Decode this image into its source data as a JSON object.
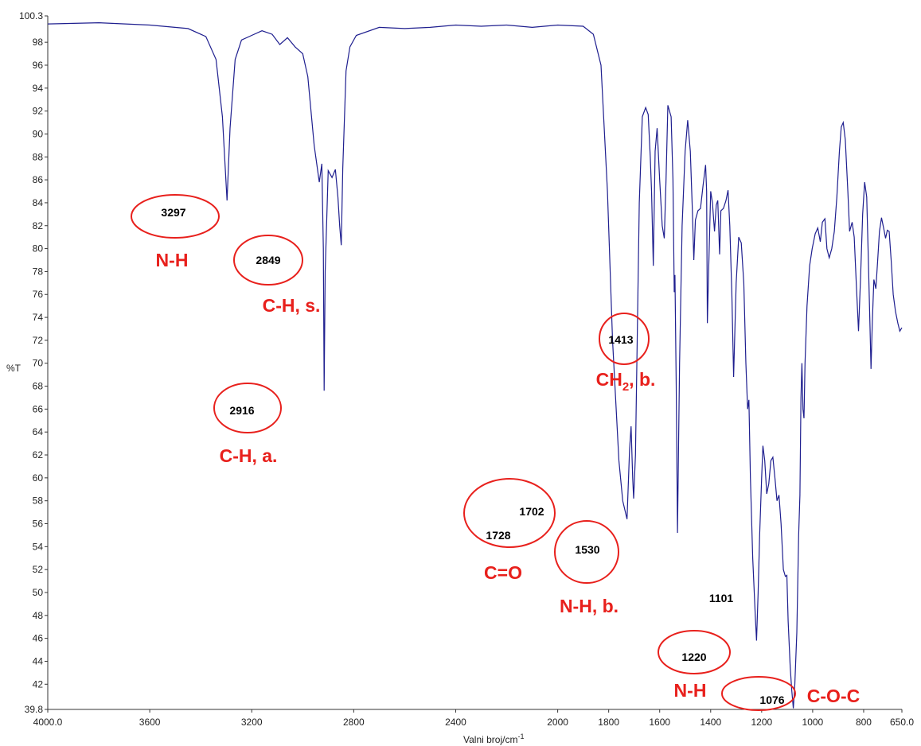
{
  "chart_data": {
    "type": "line",
    "title": "",
    "xlabel": "Valni broj/cm",
    "xlabel_sup": "-1",
    "ylabel": "%T",
    "xlim": [
      4000.0,
      650.0
    ],
    "ylim": [
      39.8,
      100.3
    ],
    "x_reversed": true,
    "grid": false,
    "x_ticks": [
      "4000.0",
      "3600",
      "3200",
      "2800",
      "2400",
      "2000",
      "1800",
      "1600",
      "1400",
      "1200",
      "1000",
      "800",
      "650.0"
    ],
    "y_ticks": [
      "39.8",
      "42",
      "44",
      "46",
      "48",
      "50",
      "52",
      "54",
      "56",
      "58",
      "60",
      "62",
      "64",
      "66",
      "68",
      "70",
      "72",
      "74",
      "76",
      "78",
      "80",
      "82",
      "84",
      "86",
      "88",
      "90",
      "92",
      "94",
      "96",
      "98",
      "100.3"
    ],
    "line_color": "#1f1f8f",
    "annotation_color": "#e8201c",
    "series": [
      {
        "points": [
          [
            4000,
            99.6
          ],
          [
            3800,
            99.7
          ],
          [
            3600,
            99.5
          ],
          [
            3450,
            99.2
          ],
          [
            3380,
            98.5
          ],
          [
            3340,
            96.5
          ],
          [
            3315,
            91.5
          ],
          [
            3297,
            84.2
          ],
          [
            3285,
            90.5
          ],
          [
            3265,
            96.5
          ],
          [
            3240,
            98.2
          ],
          [
            3200,
            98.6
          ],
          [
            3160,
            99.0
          ],
          [
            3120,
            98.7
          ],
          [
            3090,
            97.8
          ],
          [
            3060,
            98.4
          ],
          [
            3030,
            97.6
          ],
          [
            3000,
            97.0
          ],
          [
            2980,
            95.0
          ],
          [
            2955,
            89.0
          ],
          [
            2935,
            85.8
          ],
          [
            2925,
            87.4
          ],
          [
            2919,
            80.0
          ],
          [
            2916,
            67.6
          ],
          [
            2912,
            78.0
          ],
          [
            2900,
            86.8
          ],
          [
            2885,
            86.2
          ],
          [
            2872,
            86.9
          ],
          [
            2862,
            84.5
          ],
          [
            2855,
            82.0
          ],
          [
            2849,
            80.3
          ],
          [
            2843,
            87.0
          ],
          [
            2830,
            95.5
          ],
          [
            2815,
            97.6
          ],
          [
            2790,
            98.6
          ],
          [
            2700,
            99.3
          ],
          [
            2600,
            99.2
          ],
          [
            2500,
            99.3
          ],
          [
            2400,
            99.5
          ],
          [
            2300,
            99.4
          ],
          [
            2200,
            99.5
          ],
          [
            2100,
            99.3
          ],
          [
            2000,
            99.5
          ],
          [
            1900,
            99.4
          ],
          [
            1860,
            98.7
          ],
          [
            1830,
            96.0
          ],
          [
            1805,
            85.0
          ],
          [
            1785,
            72.0
          ],
          [
            1760,
            61.5
          ],
          [
            1745,
            58.0
          ],
          [
            1728,
            56.4
          ],
          [
            1718,
            62.5
          ],
          [
            1712,
            64.5
          ],
          [
            1706,
            60.0
          ],
          [
            1702,
            58.2
          ],
          [
            1695,
            62.0
          ],
          [
            1680,
            84.0
          ],
          [
            1668,
            91.5
          ],
          [
            1655,
            92.3
          ],
          [
            1645,
            91.7
          ],
          [
            1637,
            88.0
          ],
          [
            1632,
            85.0
          ],
          [
            1625,
            78.5
          ],
          [
            1618,
            88.5
          ],
          [
            1610,
            90.5
          ],
          [
            1600,
            86.0
          ],
          [
            1590,
            82.0
          ],
          [
            1582,
            80.9
          ],
          [
            1575,
            86.0
          ],
          [
            1568,
            92.5
          ],
          [
            1555,
            91.5
          ],
          [
            1548,
            86.0
          ],
          [
            1543,
            76.2
          ],
          [
            1540,
            77.7
          ],
          [
            1535,
            68.0
          ],
          [
            1530,
            55.2
          ],
          [
            1522,
            70.0
          ],
          [
            1512,
            82.0
          ],
          [
            1500,
            88.5
          ],
          [
            1490,
            91.2
          ],
          [
            1480,
            88.5
          ],
          [
            1472,
            83.5
          ],
          [
            1466,
            79.0
          ],
          [
            1460,
            82.5
          ],
          [
            1450,
            83.3
          ],
          [
            1440,
            83.5
          ],
          [
            1430,
            85.5
          ],
          [
            1420,
            87.3
          ],
          [
            1416,
            85.0
          ],
          [
            1413,
            73.5
          ],
          [
            1408,
            78.0
          ],
          [
            1400,
            85.0
          ],
          [
            1393,
            84.0
          ],
          [
            1385,
            81.5
          ],
          [
            1378,
            83.8
          ],
          [
            1372,
            84.2
          ],
          [
            1365,
            79.5
          ],
          [
            1360,
            83.3
          ],
          [
            1350,
            83.5
          ],
          [
            1340,
            84.2
          ],
          [
            1332,
            85.1
          ],
          [
            1325,
            82.0
          ],
          [
            1317,
            76.0
          ],
          [
            1310,
            68.8
          ],
          [
            1300,
            77.0
          ],
          [
            1290,
            81.0
          ],
          [
            1280,
            80.5
          ],
          [
            1270,
            77.0
          ],
          [
            1262,
            70.0
          ],
          [
            1255,
            66.0
          ],
          [
            1250,
            66.8
          ],
          [
            1244,
            60.0
          ],
          [
            1235,
            53.0
          ],
          [
            1225,
            48.0
          ],
          [
            1220,
            45.8
          ],
          [
            1214,
            50.0
          ],
          [
            1208,
            55.0
          ],
          [
            1200,
            60.0
          ],
          [
            1195,
            62.8
          ],
          [
            1188,
            61.5
          ],
          [
            1180,
            58.6
          ],
          [
            1172,
            59.5
          ],
          [
            1164,
            61.5
          ],
          [
            1156,
            61.8
          ],
          [
            1148,
            60.0
          ],
          [
            1140,
            58.0
          ],
          [
            1132,
            58.5
          ],
          [
            1124,
            56.0
          ],
          [
            1115,
            52.0
          ],
          [
            1107,
            51.4
          ],
          [
            1101,
            51.5
          ],
          [
            1096,
            47.5
          ],
          [
            1088,
            43.5
          ],
          [
            1082,
            41.5
          ],
          [
            1076,
            39.9
          ],
          [
            1070,
            42.0
          ],
          [
            1062,
            46.5
          ],
          [
            1055,
            55.0
          ],
          [
            1050,
            58.5
          ],
          [
            1046,
            67.0
          ],
          [
            1042,
            70.0
          ],
          [
            1038,
            66.0
          ],
          [
            1034,
            65.2
          ],
          [
            1030,
            70.0
          ],
          [
            1022,
            75.0
          ],
          [
            1012,
            78.5
          ],
          [
            1002,
            80.0
          ],
          [
            990,
            81.3
          ],
          [
            980,
            81.8
          ],
          [
            970,
            80.6
          ],
          [
            962,
            82.3
          ],
          [
            952,
            82.6
          ],
          [
            944,
            80.0
          ],
          [
            935,
            79.2
          ],
          [
            925,
            80.0
          ],
          [
            915,
            81.5
          ],
          [
            905,
            84.5
          ],
          [
            895,
            88.5
          ],
          [
            888,
            90.6
          ],
          [
            880,
            91.0
          ],
          [
            872,
            89.5
          ],
          [
            862,
            85.0
          ],
          [
            855,
            81.5
          ],
          [
            845,
            82.3
          ],
          [
            837,
            81.0
          ],
          [
            828,
            76.5
          ],
          [
            820,
            72.8
          ],
          [
            812,
            77.5
          ],
          [
            804,
            83.0
          ],
          [
            796,
            85.8
          ],
          [
            788,
            84.5
          ],
          [
            782,
            79.5
          ],
          [
            775,
            73.0
          ],
          [
            771,
            69.5
          ],
          [
            766,
            73.5
          ],
          [
            760,
            77.3
          ],
          [
            752,
            76.5
          ],
          [
            745,
            79.0
          ],
          [
            738,
            81.5
          ],
          [
            730,
            82.7
          ],
          [
            720,
            81.6
          ],
          [
            714,
            80.9
          ],
          [
            707,
            81.6
          ],
          [
            700,
            81.5
          ],
          [
            692,
            79.0
          ],
          [
            684,
            76.0
          ],
          [
            675,
            74.5
          ],
          [
            666,
            73.5
          ],
          [
            658,
            72.8
          ],
          [
            650,
            73.1
          ]
        ]
      }
    ],
    "peak_labels": [
      {
        "text": "3297",
        "x": 3297,
        "y": 84.2
      },
      {
        "text": "2849",
        "x": 2849,
        "y": 80.3
      },
      {
        "text": "2916",
        "x": 2916,
        "y": 67.6
      },
      {
        "text": "1728",
        "x": 1728,
        "y": 56.4
      },
      {
        "text": "1702",
        "x": 1702,
        "y": 58.2
      },
      {
        "text": "1530",
        "x": 1530,
        "y": 55.2
      },
      {
        "text": "1413",
        "x": 1413,
        "y": 73.5
      },
      {
        "text": "1220",
        "x": 1220,
        "y": 45.8
      },
      {
        "text": "1101",
        "x": 1101,
        "y": 51.5
      },
      {
        "text": "1076",
        "x": 1076,
        "y": 39.9
      }
    ],
    "assignments": [
      {
        "text": "N-H",
        "peak": "3297"
      },
      {
        "text": "C-H, s.",
        "peak": "2849"
      },
      {
        "text": "C-H, a.",
        "peak": "2916"
      },
      {
        "text": "C=O",
        "peak": "1728"
      },
      {
        "text": "N-H, b.",
        "peak": "1530"
      },
      {
        "text": "CH",
        "sub": "2",
        "suffix": ", b.",
        "peak": "1413"
      },
      {
        "text": "N-H",
        "peak": "1220"
      },
      {
        "text": "C-O-C",
        "peak": "1076"
      }
    ]
  }
}
